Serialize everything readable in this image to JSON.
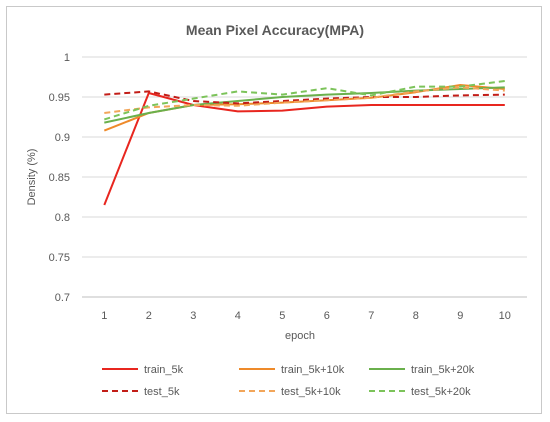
{
  "chart_data": {
    "type": "line",
    "title": "Mean Pixel Accuracy(MPA)",
    "xlabel": "epoch",
    "ylabel": "Density (%)",
    "x": [
      1,
      2,
      3,
      4,
      5,
      6,
      7,
      8,
      9,
      10
    ],
    "ylim": [
      0.7,
      1
    ],
    "yticks": [
      "0.7",
      "0.75",
      "0.8",
      "0.85",
      "0.9",
      "0.95",
      "1"
    ],
    "grid": "horizontal",
    "legend": "bottom",
    "series": [
      {
        "name": "train_5k",
        "color": "#e8261f",
        "dash": "solid",
        "values": [
          0.815,
          0.955,
          0.94,
          0.932,
          0.933,
          0.938,
          0.94,
          0.94,
          0.94,
          0.94
        ]
      },
      {
        "name": "train_5k+10k",
        "color": "#ee8a2a",
        "dash": "solid",
        "values": [
          0.908,
          0.93,
          0.94,
          0.941,
          0.943,
          0.946,
          0.949,
          0.956,
          0.965,
          0.96
        ]
      },
      {
        "name": "train_5k+20k",
        "color": "#6ab04c",
        "dash": "solid",
        "values": [
          0.918,
          0.93,
          0.94,
          0.945,
          0.95,
          0.953,
          0.955,
          0.958,
          0.96,
          0.962
        ]
      },
      {
        "name": "test_5k",
        "color": "#c21d17",
        "dash": "dashed",
        "values": [
          0.953,
          0.957,
          0.945,
          0.942,
          0.945,
          0.948,
          0.95,
          0.95,
          0.952,
          0.953
        ]
      },
      {
        "name": "test_5k+10k",
        "color": "#f2a65a",
        "dash": "dashed",
        "values": [
          0.93,
          0.937,
          0.94,
          0.939,
          0.943,
          0.946,
          0.949,
          0.957,
          0.962,
          0.958
        ]
      },
      {
        "name": "test_5k+20k",
        "color": "#7cc35a",
        "dash": "dashed",
        "values": [
          0.922,
          0.939,
          0.948,
          0.957,
          0.953,
          0.961,
          0.952,
          0.963,
          0.963,
          0.97
        ]
      }
    ]
  }
}
